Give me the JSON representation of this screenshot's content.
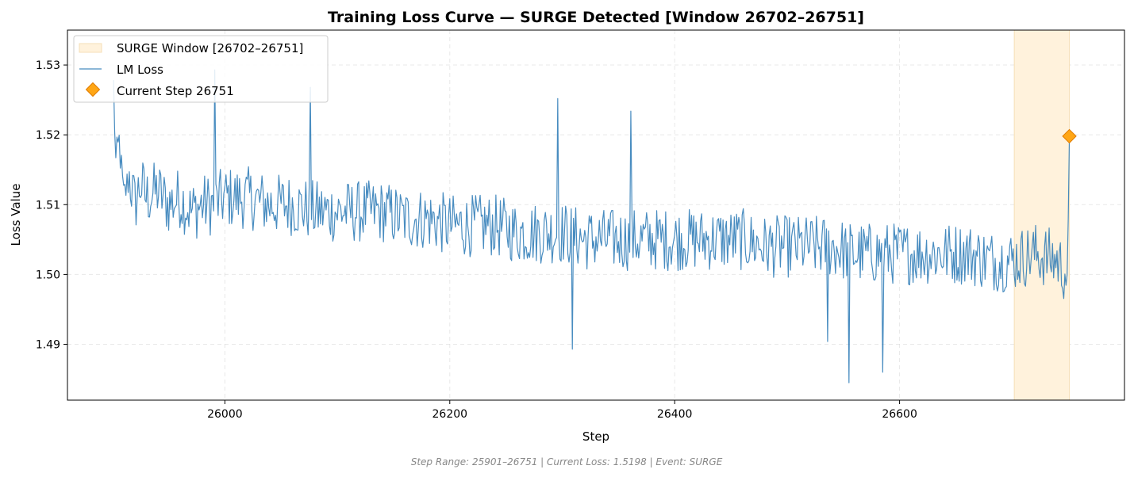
{
  "chart_data": {
    "type": "line",
    "title": "Training Loss Curve — SURGE Detected [Window 26702–26751]",
    "xlabel": "Step",
    "ylabel": "Loss Value",
    "xlim": [
      25860,
      26800
    ],
    "ylim": [
      1.482,
      1.535
    ],
    "x_ticks": [
      26000,
      26200,
      26400,
      26600
    ],
    "x_tick_labels": [
      "26000",
      "26200",
      "26400",
      "26600"
    ],
    "y_ticks": [
      1.49,
      1.5,
      1.51,
      1.52,
      1.53
    ],
    "y_tick_labels": [
      "1.49",
      "1.50",
      "1.51",
      "1.52",
      "1.53"
    ],
    "grid": true,
    "legend_position": "top-left",
    "legend": [
      {
        "label": "SURGE Window [26702–26751]",
        "kind": "span"
      },
      {
        "label": "LM Loss",
        "kind": "line"
      },
      {
        "label": "Current Step 26751",
        "kind": "marker"
      }
    ],
    "surge_window": [
      26702,
      26751
    ],
    "current_point": {
      "x": 26751,
      "y": 1.5198
    },
    "series": [
      {
        "name": "LM Loss",
        "x_start": 25901,
        "x_end": 26751,
        "keypoints": [
          [
            25901,
            1.527
          ],
          [
            25903,
            1.516
          ],
          [
            25906,
            1.519
          ],
          [
            25910,
            1.511
          ],
          [
            25915,
            1.514
          ],
          [
            25920,
            1.51
          ],
          [
            25925,
            1.513
          ],
          [
            25930,
            1.511
          ],
          [
            25940,
            1.512
          ],
          [
            25950,
            1.51
          ],
          [
            25960,
            1.511
          ],
          [
            25970,
            1.509
          ],
          [
            25980,
            1.51
          ],
          [
            25990,
            1.51
          ],
          [
            26000,
            1.511
          ],
          [
            26020,
            1.511
          ],
          [
            26040,
            1.51
          ],
          [
            26060,
            1.51
          ],
          [
            26080,
            1.509
          ],
          [
            26100,
            1.509
          ],
          [
            26120,
            1.509
          ],
          [
            26140,
            1.509
          ],
          [
            26160,
            1.508
          ],
          [
            26180,
            1.508
          ],
          [
            26200,
            1.507
          ],
          [
            26220,
            1.507
          ],
          [
            26240,
            1.507
          ],
          [
            26260,
            1.506
          ],
          [
            26280,
            1.506
          ],
          [
            26300,
            1.506
          ],
          [
            26320,
            1.505
          ],
          [
            26340,
            1.505
          ],
          [
            26360,
            1.505
          ],
          [
            26380,
            1.505
          ],
          [
            26400,
            1.505
          ],
          [
            26420,
            1.505
          ],
          [
            26440,
            1.505
          ],
          [
            26460,
            1.505
          ],
          [
            26480,
            1.504
          ],
          [
            26500,
            1.504
          ],
          [
            26520,
            1.504
          ],
          [
            26540,
            1.504
          ],
          [
            26560,
            1.503
          ],
          [
            26580,
            1.503
          ],
          [
            26600,
            1.503
          ],
          [
            26620,
            1.503
          ],
          [
            26640,
            1.503
          ],
          [
            26660,
            1.503
          ],
          [
            26680,
            1.502
          ],
          [
            26700,
            1.502
          ],
          [
            26720,
            1.503
          ],
          [
            26740,
            1.502
          ],
          [
            26749,
            1.5
          ],
          [
            26750,
            1.508
          ],
          [
            26751,
            1.5198
          ]
        ],
        "noise_amplitude": 0.0045,
        "extremes": [
          [
            25991,
            1.5293
          ],
          [
            26076,
            1.5268
          ],
          [
            26296,
            1.5252
          ],
          [
            26361,
            1.5234
          ],
          [
            26309,
            1.4893
          ],
          [
            26555,
            1.4845
          ],
          [
            26585,
            1.486
          ],
          [
            26536,
            1.4904
          ]
        ]
      }
    ],
    "colors": {
      "line": "#2878b5",
      "surge_fill": "#fff2dc",
      "surge_edge": "#f5dfb7",
      "marker_fill": "#ffa615",
      "marker_edge": "#e07b00"
    }
  },
  "footer": "Step Range: 25901–26751 | Current Loss: 1.5198 | Event: SURGE"
}
